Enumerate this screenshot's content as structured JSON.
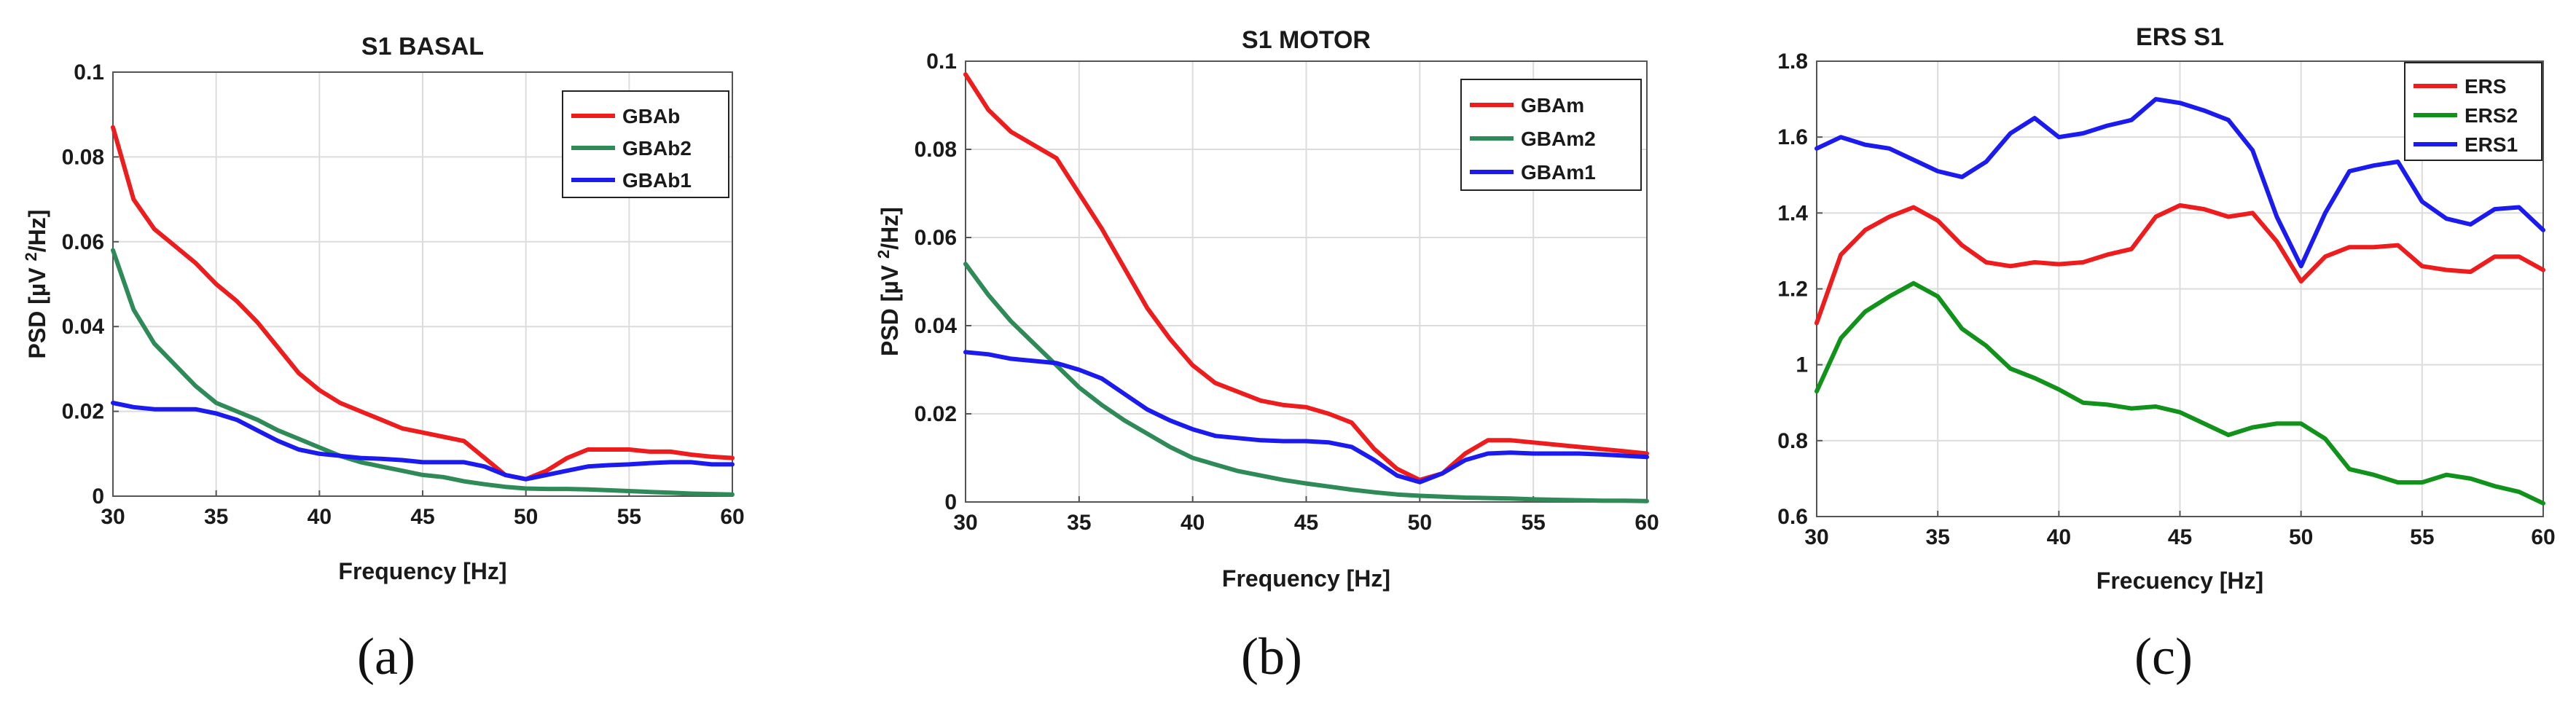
{
  "chart_data": [
    {
      "type": "line",
      "title": "S1 BASAL",
      "xlabel": "Frequency [Hz]",
      "ylabel": [
        "PSD [µV",
        "2",
        "/Hz]"
      ],
      "xlim": [
        30,
        60
      ],
      "ylim": [
        0,
        0.1
      ],
      "xticks": [
        30,
        35,
        40,
        45,
        50,
        55,
        60
      ],
      "xtick_labels": [
        "30",
        "35",
        "40",
        "45",
        "50",
        "55",
        "60"
      ],
      "yticks": [
        0,
        0.02,
        0.04,
        0.06,
        0.08,
        0.1
      ],
      "ytick_labels": [
        "0",
        "0.02",
        "0.04",
        "0.06",
        "0.08",
        "0.1"
      ],
      "grid": true,
      "legend_position": "top-right",
      "caption": "(a)",
      "x": [
        30,
        31,
        32,
        33,
        34,
        35,
        36,
        37,
        38,
        39,
        40,
        41,
        42,
        43,
        44,
        45,
        46,
        47,
        48,
        49,
        50,
        51,
        52,
        53,
        54,
        55,
        56,
        57,
        58,
        59,
        60
      ],
      "series": [
        {
          "name": "GBAb",
          "color": "#ee1c1c",
          "values": [
            0.087,
            0.07,
            0.063,
            0.059,
            0.055,
            0.05,
            0.046,
            0.041,
            0.035,
            0.029,
            0.025,
            0.022,
            0.02,
            0.018,
            0.016,
            0.015,
            0.014,
            0.013,
            0.009,
            0.005,
            0.004,
            0.006,
            0.009,
            0.011,
            0.011,
            0.011,
            0.0105,
            0.0105,
            0.0098,
            0.0093,
            0.009
          ]
        },
        {
          "name": "GBAb2",
          "color": "#2e8b57",
          "values": [
            0.058,
            0.044,
            0.036,
            0.031,
            0.026,
            0.022,
            0.02,
            0.018,
            0.0155,
            0.0135,
            0.0115,
            0.0095,
            0.008,
            0.007,
            0.006,
            0.005,
            0.0045,
            0.0035,
            0.0028,
            0.0022,
            0.0018,
            0.0017,
            0.0017,
            0.0016,
            0.0014,
            0.0012,
            0.001,
            0.0008,
            0.0006,
            0.0005,
            0.0004
          ]
        },
        {
          "name": "GBAb1",
          "color": "#1b1bf0",
          "values": [
            0.022,
            0.021,
            0.0205,
            0.0205,
            0.0205,
            0.0195,
            0.018,
            0.0155,
            0.013,
            0.011,
            0.01,
            0.0095,
            0.009,
            0.0088,
            0.0085,
            0.008,
            0.008,
            0.008,
            0.007,
            0.005,
            0.004,
            0.005,
            0.006,
            0.007,
            0.0073,
            0.0075,
            0.0078,
            0.008,
            0.008,
            0.0075,
            0.0075
          ]
        }
      ]
    },
    {
      "type": "line",
      "title": "S1 MOTOR",
      "xlabel": "Frequency [Hz]",
      "ylabel": [
        "PSD [µV",
        "2",
        "/Hz]"
      ],
      "xlim": [
        30,
        60
      ],
      "ylim": [
        0,
        0.1
      ],
      "xticks": [
        30,
        35,
        40,
        45,
        50,
        55,
        60
      ],
      "xtick_labels": [
        "30",
        "35",
        "40",
        "45",
        "50",
        "55",
        "60"
      ],
      "yticks": [
        0,
        0.02,
        0.04,
        0.06,
        0.08,
        0.1
      ],
      "ytick_labels": [
        "0",
        "0.02",
        "0.04",
        "0.06",
        "0.08",
        "0.1"
      ],
      "grid": true,
      "legend_position": "top-right",
      "caption": "(b)",
      "x": [
        30,
        31,
        32,
        33,
        34,
        35,
        36,
        37,
        38,
        39,
        40,
        41,
        42,
        43,
        44,
        45,
        46,
        47,
        48,
        49,
        50,
        51,
        52,
        53,
        54,
        55,
        56,
        57,
        58,
        59,
        60
      ],
      "series": [
        {
          "name": "GBAm",
          "color": "#ee1c1c",
          "values": [
            0.097,
            0.089,
            0.084,
            0.081,
            0.078,
            0.07,
            0.062,
            0.053,
            0.044,
            0.037,
            0.031,
            0.027,
            0.025,
            0.023,
            0.022,
            0.0215,
            0.02,
            0.018,
            0.012,
            0.0075,
            0.005,
            0.0065,
            0.011,
            0.014,
            0.014,
            0.0135,
            0.013,
            0.0125,
            0.012,
            0.0115,
            0.011
          ]
        },
        {
          "name": "GBAm2",
          "color": "#2e8b57",
          "values": [
            0.054,
            0.047,
            0.041,
            0.036,
            0.031,
            0.026,
            0.022,
            0.0185,
            0.0155,
            0.0125,
            0.01,
            0.0085,
            0.007,
            0.006,
            0.005,
            0.0042,
            0.0035,
            0.0028,
            0.0022,
            0.0017,
            0.0014,
            0.0012,
            0.001,
            0.0009,
            0.0008,
            0.0006,
            0.0005,
            0.0004,
            0.0003,
            0.0003,
            0.0002
          ]
        },
        {
          "name": "GBAm1",
          "color": "#1b1bf0",
          "values": [
            0.034,
            0.0335,
            0.0325,
            0.032,
            0.0315,
            0.03,
            0.028,
            0.0245,
            0.021,
            0.0185,
            0.0165,
            0.015,
            0.0145,
            0.014,
            0.0138,
            0.0138,
            0.0135,
            0.0125,
            0.0095,
            0.006,
            0.0045,
            0.0065,
            0.0095,
            0.011,
            0.0112,
            0.011,
            0.011,
            0.011,
            0.0108,
            0.0105,
            0.0102
          ]
        }
      ]
    },
    {
      "type": "line",
      "title": "ERS S1",
      "xlabel": "Frecuency [Hz]",
      "ylabel": [],
      "xlim": [
        30,
        60
      ],
      "ylim": [
        0.6,
        1.8
      ],
      "xticks": [
        30,
        35,
        40,
        45,
        50,
        55,
        60
      ],
      "xtick_labels": [
        "30",
        "35",
        "40",
        "45",
        "50",
        "55",
        "60"
      ],
      "yticks": [
        0.6,
        0.8,
        1.0,
        1.2,
        1.4,
        1.6,
        1.8
      ],
      "ytick_labels": [
        "0.6",
        "0.8",
        "1",
        "1.2",
        "1.4",
        "1.6",
        "1.8"
      ],
      "grid": true,
      "legend_position": "top-right",
      "caption": "(c)",
      "x": [
        30,
        31,
        32,
        33,
        34,
        35,
        36,
        37,
        38,
        39,
        40,
        41,
        42,
        43,
        44,
        45,
        46,
        47,
        48,
        49,
        50,
        51,
        52,
        53,
        54,
        55,
        56,
        57,
        58,
        59,
        60
      ],
      "series": [
        {
          "name": "ERS",
          "color": "#ee1c1c",
          "values": [
            1.11,
            1.29,
            1.355,
            1.39,
            1.415,
            1.38,
            1.315,
            1.27,
            1.26,
            1.27,
            1.265,
            1.27,
            1.29,
            1.305,
            1.39,
            1.42,
            1.41,
            1.39,
            1.4,
            1.325,
            1.22,
            1.285,
            1.31,
            1.31,
            1.315,
            1.26,
            1.25,
            1.245,
            1.285,
            1.285,
            1.25
          ]
        },
        {
          "name": "ERS2",
          "color": "#11921a",
          "values": [
            0.93,
            1.07,
            1.14,
            1.18,
            1.215,
            1.18,
            1.095,
            1.05,
            0.99,
            0.965,
            0.935,
            0.9,
            0.895,
            0.885,
            0.89,
            0.875,
            0.845,
            0.815,
            0.835,
            0.845,
            0.845,
            0.805,
            0.725,
            0.71,
            0.69,
            0.69,
            0.71,
            0.7,
            0.68,
            0.665,
            0.635
          ]
        },
        {
          "name": "ERS1",
          "color": "#1b1bf0",
          "values": [
            1.57,
            1.6,
            1.58,
            1.57,
            1.54,
            1.51,
            1.495,
            1.535,
            1.61,
            1.65,
            1.6,
            1.61,
            1.63,
            1.645,
            1.7,
            1.69,
            1.67,
            1.645,
            1.565,
            1.39,
            1.26,
            1.4,
            1.51,
            1.525,
            1.535,
            1.43,
            1.385,
            1.37,
            1.41,
            1.415,
            1.355
          ]
        }
      ]
    }
  ]
}
